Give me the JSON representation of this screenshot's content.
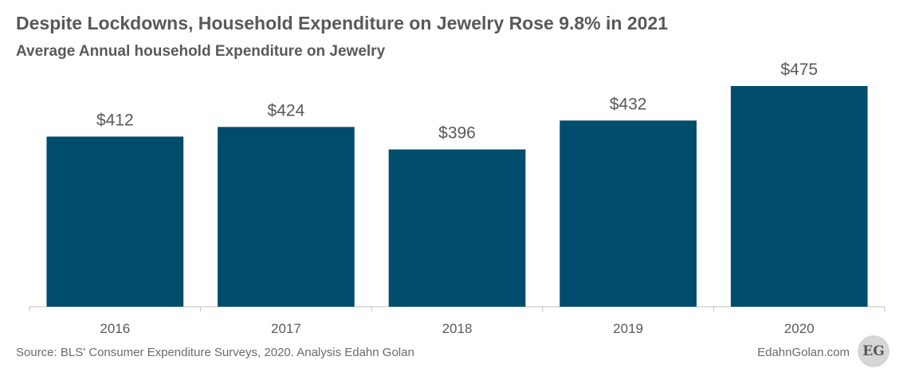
{
  "chart_data": {
    "type": "bar",
    "title": "Despite Lockdowns, Household Expenditure on Jewelry Rose 9.8% in 2021",
    "subtitle": "Average Annual household Expenditure on Jewelry",
    "categories": [
      "2016",
      "2017",
      "2018",
      "2019",
      "2020"
    ],
    "values": [
      412,
      424,
      396,
      432,
      475
    ],
    "value_labels": [
      "$412",
      "$424",
      "$396",
      "$432",
      "$475"
    ],
    "xlabel": "",
    "ylabel": "",
    "ylim": [
      200,
      475
    ],
    "grid": false,
    "legend": "none",
    "bar_color": "#004c6d"
  },
  "footer": {
    "source": "Source: BLS' Consumer Expenditure Surveys, 2020. Analysis Edahn Golan",
    "brand": "EdahnGolan.com",
    "logo_text": "EG"
  },
  "colors": {
    "text": "#595959",
    "axis": "#bfbfbf"
  }
}
